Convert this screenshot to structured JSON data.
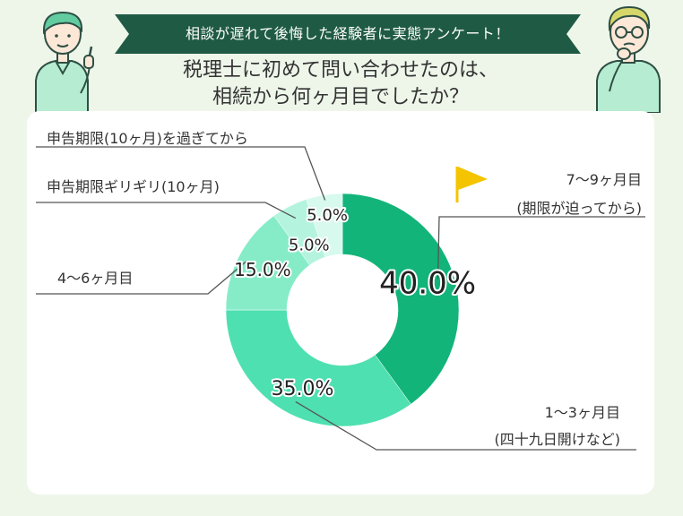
{
  "banner": {
    "text": "相談が遅れて後悔した経験者に実態アンケート！"
  },
  "question": {
    "line1": "税理士に初めて問い合わせたのは、",
    "line2": "相続から何ヶ月目でしたか？"
  },
  "colors": {
    "background": "#eef6ea",
    "banner": "#1f5a45",
    "leader": "#555555"
  },
  "chart_data": {
    "type": "pie",
    "donut": true,
    "unit": "%",
    "categories": [
      "7〜9ヶ月目(期限が迫ってから)",
      "1〜3ヶ月目(四十九日開けなど)",
      "4〜6ヶ月目",
      "申告期限ギリギリ(10ヶ月)",
      "申告期限(10ヶ月)を過ぎてから"
    ],
    "values": [
      40.0,
      35.0,
      15.0,
      5.0,
      5.0
    ],
    "value_labels": [
      "40.0%",
      "35.0%",
      "15.0%",
      "5.0%",
      "5.0%"
    ],
    "slices": [
      {
        "value": 40.0,
        "label": "40.0%",
        "color": "#12b47a",
        "callout_lines": [
          "7〜9ヶ月目",
          "(期限が迫ってから)"
        ]
      },
      {
        "value": 35.0,
        "label": "35.0%",
        "color": "#4ee0b0",
        "callout_lines": [
          "1〜3ヶ月目",
          "(四十九日開けなど)"
        ]
      },
      {
        "value": 15.0,
        "label": "15.0%",
        "color": "#86ecc8",
        "callout_lines": [
          "4〜6ヶ月目"
        ]
      },
      {
        "value": 5.0,
        "label": "5.0%",
        "color": "#b4f4de",
        "callout_lines": [
          "申告期限ギリギリ(10ヶ月)"
        ]
      },
      {
        "value": 5.0,
        "label": "5.0%",
        "color": "#d8faee",
        "callout_lines": [
          "申告期限(10ヶ月)を過ぎてから"
        ]
      }
    ],
    "highlight": {
      "slice": 0,
      "icon": "flag-icon",
      "color": "#f4c400"
    }
  }
}
